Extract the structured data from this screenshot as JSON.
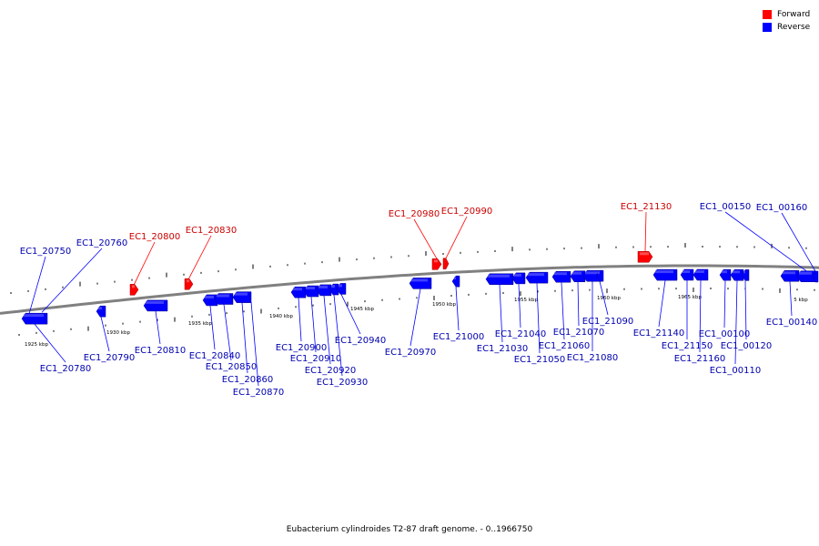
{
  "colors": {
    "forward": "#ff0000",
    "reverse": "#0000ff",
    "backbone": "#808080",
    "label_forward": "#cc0000",
    "label_reverse": "#0000b0"
  },
  "legend": {
    "forward_label": "Forward",
    "reverse_label": "Reverse"
  },
  "caption": "Eubacterium cylindroides T2-87 draft genome. - 0..1966750",
  "scale_labels": [
    "1925 kbp",
    "1930 kbp",
    "1935 kbp",
    "1940 kbp",
    "1945 kbp",
    "1950 kbp",
    "1955 kbp",
    "1960 kbp",
    "1965 kbp",
    "5 kbp"
  ],
  "genes": [
    {
      "name": "EC1_20750",
      "strand": "reverse"
    },
    {
      "name": "EC1_20760",
      "strand": "reverse"
    },
    {
      "name": "EC1_20780",
      "strand": "reverse"
    },
    {
      "name": "EC1_20790",
      "strand": "reverse"
    },
    {
      "name": "EC1_20800",
      "strand": "forward"
    },
    {
      "name": "EC1_20810",
      "strand": "reverse"
    },
    {
      "name": "EC1_20830",
      "strand": "forward"
    },
    {
      "name": "EC1_20840",
      "strand": "reverse"
    },
    {
      "name": "EC1_20850",
      "strand": "reverse"
    },
    {
      "name": "EC1_20860",
      "strand": "reverse"
    },
    {
      "name": "EC1_20870",
      "strand": "reverse"
    },
    {
      "name": "EC1_20900",
      "strand": "reverse"
    },
    {
      "name": "EC1_20910",
      "strand": "reverse"
    },
    {
      "name": "EC1_20920",
      "strand": "reverse"
    },
    {
      "name": "EC1_20930",
      "strand": "reverse"
    },
    {
      "name": "EC1_20940",
      "strand": "reverse"
    },
    {
      "name": "EC1_20970",
      "strand": "reverse"
    },
    {
      "name": "EC1_20980",
      "strand": "forward"
    },
    {
      "name": "EC1_20990",
      "strand": "forward"
    },
    {
      "name": "EC1_21000",
      "strand": "reverse"
    },
    {
      "name": "EC1_21030",
      "strand": "reverse"
    },
    {
      "name": "EC1_21040",
      "strand": "reverse"
    },
    {
      "name": "EC1_21050",
      "strand": "reverse"
    },
    {
      "name": "EC1_21060",
      "strand": "reverse"
    },
    {
      "name": "EC1_21070",
      "strand": "reverse"
    },
    {
      "name": "EC1_21080",
      "strand": "reverse"
    },
    {
      "name": "EC1_21090",
      "strand": "reverse"
    },
    {
      "name": "EC1_21130",
      "strand": "forward"
    },
    {
      "name": "EC1_21140",
      "strand": "reverse"
    },
    {
      "name": "EC1_21150",
      "strand": "reverse"
    },
    {
      "name": "EC1_21160",
      "strand": "reverse"
    },
    {
      "name": "EC1_00100",
      "strand": "reverse"
    },
    {
      "name": "EC1_00110",
      "strand": "reverse"
    },
    {
      "name": "EC1_00120",
      "strand": "reverse"
    },
    {
      "name": "EC1_00140",
      "strand": "reverse"
    },
    {
      "name": "EC1_00150",
      "strand": "reverse"
    },
    {
      "name": "EC1_00160",
      "strand": "reverse"
    }
  ]
}
